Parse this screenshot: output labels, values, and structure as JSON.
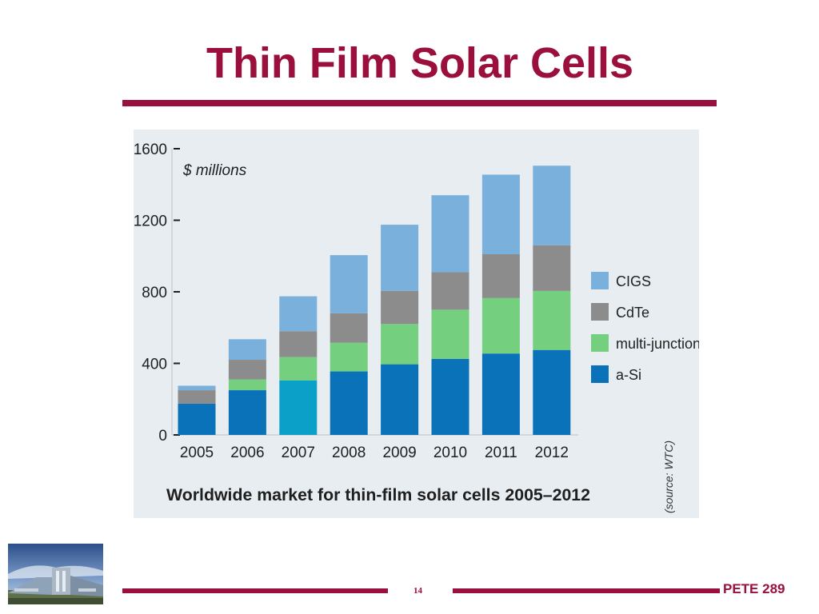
{
  "slide": {
    "title": "Thin Film Solar Cells",
    "page_number": "14",
    "course": "PETE 289"
  },
  "colors": {
    "accent": "#9a0f3c",
    "panel_background": "#e7edf1",
    "cigs": "#7ab0dc",
    "cdte": "#8c8c8c",
    "multi_junction": "#74d07e",
    "a_si": "#0a72b8",
    "a_si_2007": "#0aa0c8"
  },
  "icons": {
    "building_photo": "building-photo-icon"
  },
  "chart_data": {
    "type": "bar",
    "stacked": true,
    "title": "Worldwide market for thin-film solar cells 2005–2012",
    "ylabel": "$ millions",
    "xlabel": "",
    "source_note": "(source: WTC)",
    "categories": [
      "2005",
      "2006",
      "2007",
      "2008",
      "2009",
      "2010",
      "2011",
      "2012"
    ],
    "y_ticks": [
      "0",
      "400",
      "800",
      "1200",
      "1600"
    ],
    "ylim": [
      0,
      1600
    ],
    "grid": false,
    "legend_position": "right",
    "series": [
      {
        "name": "a-Si",
        "values": [
          175,
          250,
          305,
          355,
          395,
          425,
          455,
          475
        ]
      },
      {
        "name": "multi-junction",
        "values": [
          0,
          60,
          130,
          160,
          225,
          275,
          310,
          330
        ]
      },
      {
        "name": "CdTe",
        "values": [
          75,
          110,
          145,
          165,
          185,
          210,
          245,
          255
        ]
      },
      {
        "name": "CIGS",
        "values": [
          25,
          115,
          195,
          325,
          370,
          430,
          445,
          445
        ]
      }
    ],
    "legend": [
      "CIGS",
      "CdTe",
      "multi-junction",
      "a-Si"
    ]
  }
}
